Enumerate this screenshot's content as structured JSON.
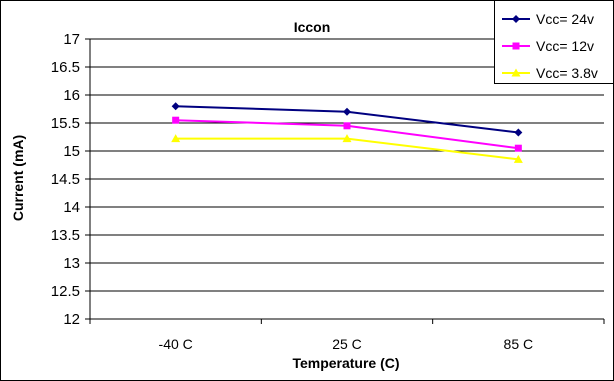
{
  "chart_data": {
    "type": "line",
    "title": "Iccon",
    "xlabel": "Temperature (C)",
    "ylabel": "Current (mA)",
    "categories": [
      "-40 C",
      "25 C",
      "85 C"
    ],
    "ylim": [
      12,
      17
    ],
    "ytick_step": 0.5,
    "grid": "horizontal",
    "legend_position": "top-right",
    "series": [
      {
        "name": "Vcc= 24v",
        "values": [
          15.8,
          15.7,
          15.33
        ],
        "color": "#000080",
        "marker": "diamond"
      },
      {
        "name": "Vcc= 12v",
        "values": [
          15.55,
          15.45,
          15.05
        ],
        "color": "#FF00FF",
        "marker": "square"
      },
      {
        "name": "Vcc= 3.8v",
        "values": [
          15.22,
          15.22,
          14.85
        ],
        "color": "#FFFF00",
        "marker": "triangle"
      }
    ]
  }
}
